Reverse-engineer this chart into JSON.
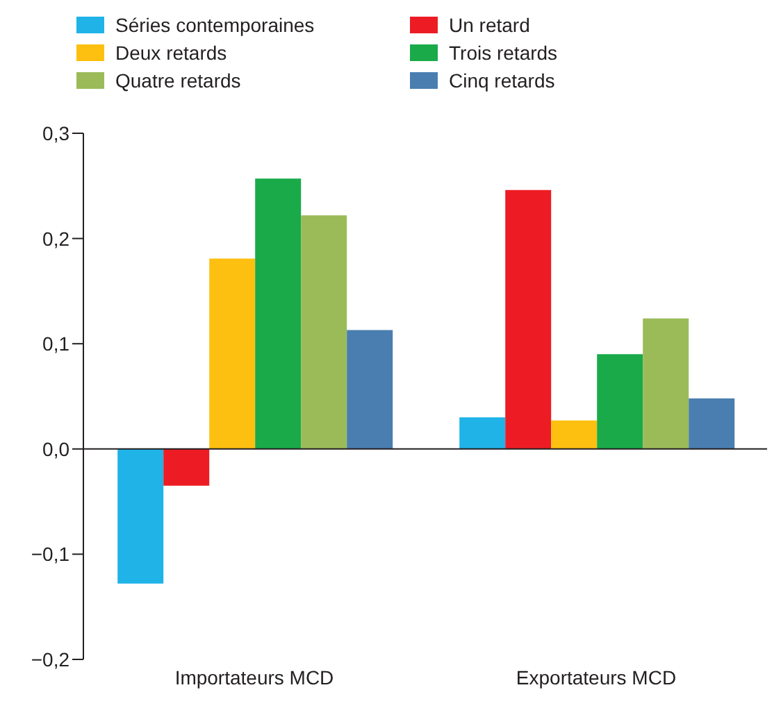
{
  "chart_data": {
    "type": "bar",
    "categories": [
      "Importateurs MCD",
      "Exportateurs MCD"
    ],
    "series": [
      {
        "name": "Séries contemporaines",
        "color": "#1fb3e8",
        "values": [
          -0.128,
          0.03
        ]
      },
      {
        "name": "Un retard",
        "color": "#ed1c24",
        "values": [
          -0.035,
          0.246
        ]
      },
      {
        "name": "Deux retards",
        "color": "#fdc010",
        "values": [
          0.181,
          0.027
        ]
      },
      {
        "name": "Trois retards",
        "color": "#1aaa4a",
        "values": [
          0.257,
          0.09
        ]
      },
      {
        "name": "Quatre retards",
        "color": "#9bbb59",
        "values": [
          0.222,
          0.124
        ]
      },
      {
        "name": "Cinq retards",
        "color": "#4a7eb0",
        "values": [
          0.113,
          0.048
        ]
      }
    ],
    "ylim": [
      -0.2,
      0.3
    ],
    "yticks": [
      {
        "value": -0.2,
        "label": "−0,2"
      },
      {
        "value": -0.1,
        "label": "−0,1"
      },
      {
        "value": 0,
        "label": "0,0"
      },
      {
        "value": 0.1,
        "label": "0,1"
      },
      {
        "value": 0.2,
        "label": "0,2"
      },
      {
        "value": 0.3,
        "label": "0,3"
      }
    ],
    "ref_lines": [
      {
        "axis": "y",
        "value": 0,
        "color": "#231f20"
      }
    ],
    "grid": false,
    "legend": "top"
  }
}
